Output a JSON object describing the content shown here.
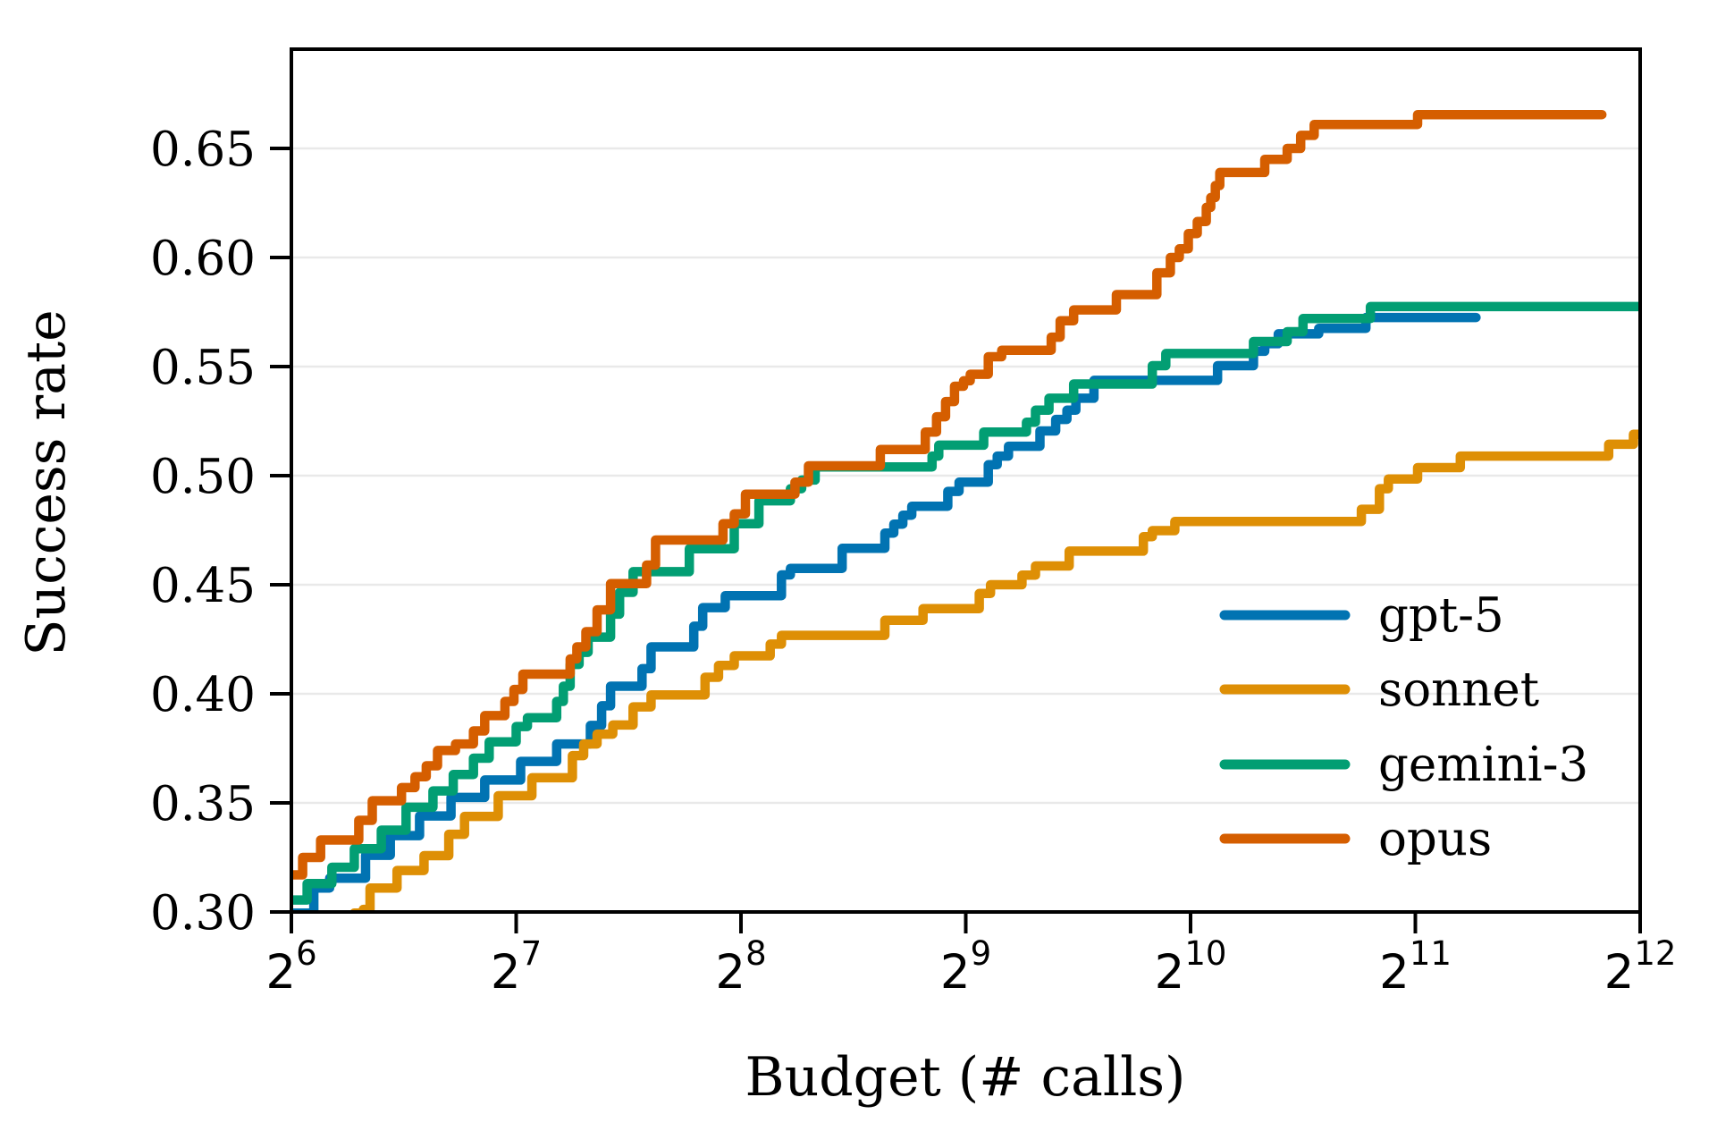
{
  "chart_data": {
    "type": "line",
    "subtype": "step-after",
    "title": "",
    "xlabel": "Budget (# calls)",
    "ylabel": "Success rate",
    "x_scale": "log2",
    "xlim_log2": [
      6,
      12
    ],
    "ylim": [
      0.3,
      0.6955
    ],
    "grid": "horizontal-only",
    "grid_color": "#e9e9e9",
    "axis_color": "#000000",
    "legend_position": "lower-right",
    "x_ticks": [
      {
        "base": "2",
        "exp": "6",
        "log2": 6
      },
      {
        "base": "2",
        "exp": "7",
        "log2": 7
      },
      {
        "base": "2",
        "exp": "8",
        "log2": 8
      },
      {
        "base": "2",
        "exp": "9",
        "log2": 9
      },
      {
        "base": "2",
        "exp": "10",
        "log2": 10
      },
      {
        "base": "2",
        "exp": "11",
        "log2": 11
      },
      {
        "base": "2",
        "exp": "12",
        "log2": 12
      }
    ],
    "y_ticks": [
      {
        "label": "0.30",
        "value": 0.3
      },
      {
        "label": "0.35",
        "value": 0.35
      },
      {
        "label": "0.40",
        "value": 0.4
      },
      {
        "label": "0.45",
        "value": 0.45
      },
      {
        "label": "0.50",
        "value": 0.5
      },
      {
        "label": "0.55",
        "value": 0.55
      },
      {
        "label": "0.60",
        "value": 0.6
      },
      {
        "label": "0.65",
        "value": 0.65
      }
    ],
    "series": [
      {
        "name": "gpt-5",
        "color": "#0173b2",
        "end_log2": 11.27,
        "steps": [
          [
            6.0,
            0.2995
          ],
          [
            6.1,
            0.311
          ],
          [
            6.17,
            0.3155
          ],
          [
            6.33,
            0.326
          ],
          [
            6.44,
            0.335
          ],
          [
            6.57,
            0.344
          ],
          [
            6.71,
            0.3525
          ],
          [
            6.86,
            0.3605
          ],
          [
            7.02,
            0.369
          ],
          [
            7.18,
            0.377
          ],
          [
            7.33,
            0.3855
          ],
          [
            7.38,
            0.3945
          ],
          [
            7.42,
            0.4035
          ],
          [
            7.56,
            0.4115
          ],
          [
            7.6,
            0.4215
          ],
          [
            7.79,
            0.431
          ],
          [
            7.83,
            0.4395
          ],
          [
            7.93,
            0.445
          ],
          [
            8.18,
            0.4545
          ],
          [
            8.22,
            0.4575
          ],
          [
            8.45,
            0.4667
          ],
          [
            8.64,
            0.4737
          ],
          [
            8.68,
            0.4778
          ],
          [
            8.72,
            0.4819
          ],
          [
            8.76,
            0.486
          ],
          [
            8.92,
            0.4928
          ],
          [
            8.97,
            0.497
          ],
          [
            9.1,
            0.505
          ],
          [
            9.14,
            0.509
          ],
          [
            9.19,
            0.5135
          ],
          [
            9.33,
            0.5205
          ],
          [
            9.4,
            0.5258
          ],
          [
            9.45,
            0.53
          ],
          [
            9.49,
            0.5355
          ],
          [
            9.57,
            0.5437
          ],
          [
            10.12,
            0.5504
          ],
          [
            10.28,
            0.557
          ],
          [
            10.33,
            0.5605
          ],
          [
            10.39,
            0.565
          ],
          [
            10.57,
            0.5675
          ],
          [
            10.78,
            0.5725
          ]
        ]
      },
      {
        "name": "sonnet",
        "color": "#de8f05",
        "end_log2": 12.0,
        "steps": [
          [
            6.28,
            0.2995
          ],
          [
            6.32,
            0.3012
          ],
          [
            6.35,
            0.311
          ],
          [
            6.47,
            0.319
          ],
          [
            6.59,
            0.3258
          ],
          [
            6.7,
            0.3356
          ],
          [
            6.77,
            0.3438
          ],
          [
            6.92,
            0.3533
          ],
          [
            7.07,
            0.3615
          ],
          [
            7.25,
            0.3717
          ],
          [
            7.3,
            0.377
          ],
          [
            7.36,
            0.3815
          ],
          [
            7.43,
            0.3857
          ],
          [
            7.52,
            0.394
          ],
          [
            7.6,
            0.3995
          ],
          [
            7.84,
            0.4076
          ],
          [
            7.9,
            0.413
          ],
          [
            7.97,
            0.4174
          ],
          [
            8.13,
            0.4228
          ],
          [
            8.18,
            0.4268
          ],
          [
            8.64,
            0.4337
          ],
          [
            8.81,
            0.439
          ],
          [
            9.06,
            0.446
          ],
          [
            9.11,
            0.45
          ],
          [
            9.25,
            0.4544
          ],
          [
            9.31,
            0.4586
          ],
          [
            9.46,
            0.4654
          ],
          [
            9.79,
            0.472
          ],
          [
            9.83,
            0.4748
          ],
          [
            9.93,
            0.479
          ],
          [
            10.76,
            0.4846
          ],
          [
            10.84,
            0.494
          ],
          [
            10.88,
            0.4985
          ],
          [
            11.01,
            0.5037
          ],
          [
            11.2,
            0.509
          ],
          [
            11.86,
            0.5144
          ],
          [
            11.97,
            0.519
          ]
        ]
      },
      {
        "name": "gemini-3",
        "color": "#029e73",
        "end_log2": 12.0,
        "steps": [
          [
            6.0,
            0.3055
          ],
          [
            6.07,
            0.313
          ],
          [
            6.18,
            0.3205
          ],
          [
            6.28,
            0.329
          ],
          [
            6.4,
            0.3375
          ],
          [
            6.51,
            0.348
          ],
          [
            6.63,
            0.3555
          ],
          [
            6.72,
            0.363
          ],
          [
            6.81,
            0.3705
          ],
          [
            6.88,
            0.378
          ],
          [
            7.0,
            0.385
          ],
          [
            7.05,
            0.389
          ],
          [
            7.18,
            0.3965
          ],
          [
            7.21,
            0.4035
          ],
          [
            7.24,
            0.4135
          ],
          [
            7.28,
            0.419
          ],
          [
            7.32,
            0.426
          ],
          [
            7.42,
            0.4365
          ],
          [
            7.46,
            0.4465
          ],
          [
            7.52,
            0.456
          ],
          [
            7.77,
            0.4665
          ],
          [
            7.97,
            0.478
          ],
          [
            8.08,
            0.4885
          ],
          [
            8.22,
            0.494
          ],
          [
            8.27,
            0.498
          ],
          [
            8.33,
            0.504
          ],
          [
            8.85,
            0.509
          ],
          [
            8.88,
            0.514
          ],
          [
            9.08,
            0.52
          ],
          [
            9.27,
            0.5245
          ],
          [
            9.31,
            0.53
          ],
          [
            9.37,
            0.5355
          ],
          [
            9.48,
            0.542
          ],
          [
            9.83,
            0.5504
          ],
          [
            9.89,
            0.556
          ],
          [
            10.28,
            0.5615
          ],
          [
            10.43,
            0.566
          ],
          [
            10.5,
            0.572
          ],
          [
            10.8,
            0.5775
          ]
        ]
      },
      {
        "name": "opus",
        "color": "#d55e00",
        "end_log2": 11.83,
        "steps": [
          [
            6.0,
            0.317
          ],
          [
            6.05,
            0.325
          ],
          [
            6.13,
            0.333
          ],
          [
            6.3,
            0.342
          ],
          [
            6.36,
            0.351
          ],
          [
            6.49,
            0.357
          ],
          [
            6.55,
            0.362
          ],
          [
            6.6,
            0.367
          ],
          [
            6.65,
            0.374
          ],
          [
            6.73,
            0.377
          ],
          [
            6.81,
            0.383
          ],
          [
            6.86,
            0.39
          ],
          [
            6.95,
            0.3965
          ],
          [
            6.99,
            0.402
          ],
          [
            7.03,
            0.409
          ],
          [
            7.24,
            0.416
          ],
          [
            7.27,
            0.4215
          ],
          [
            7.31,
            0.4285
          ],
          [
            7.36,
            0.4385
          ],
          [
            7.42,
            0.4505
          ],
          [
            7.58,
            0.459
          ],
          [
            7.62,
            0.4705
          ],
          [
            7.92,
            0.478
          ],
          [
            7.97,
            0.4825
          ],
          [
            8.02,
            0.4915
          ],
          [
            8.24,
            0.497
          ],
          [
            8.3,
            0.5045
          ],
          [
            8.62,
            0.512
          ],
          [
            8.82,
            0.52
          ],
          [
            8.87,
            0.527
          ],
          [
            8.91,
            0.534
          ],
          [
            8.95,
            0.541
          ],
          [
            8.99,
            0.5435
          ],
          [
            9.02,
            0.5465
          ],
          [
            9.1,
            0.5545
          ],
          [
            9.16,
            0.5575
          ],
          [
            9.38,
            0.5635
          ],
          [
            9.42,
            0.571
          ],
          [
            9.48,
            0.576
          ],
          [
            9.67,
            0.583
          ],
          [
            9.85,
            0.593
          ],
          [
            9.91,
            0.6
          ],
          [
            9.95,
            0.604
          ],
          [
            9.99,
            0.611
          ],
          [
            10.03,
            0.6165
          ],
          [
            10.07,
            0.623
          ],
          [
            10.09,
            0.6275
          ],
          [
            10.11,
            0.633
          ],
          [
            10.13,
            0.639
          ],
          [
            10.33,
            0.645
          ],
          [
            10.43,
            0.65
          ],
          [
            10.49,
            0.656
          ],
          [
            10.55,
            0.661
          ],
          [
            11.01,
            0.6655
          ]
        ]
      }
    ],
    "legend": {
      "entries": [
        "gpt-5",
        "sonnet",
        "gemini-3",
        "opus"
      ]
    }
  }
}
